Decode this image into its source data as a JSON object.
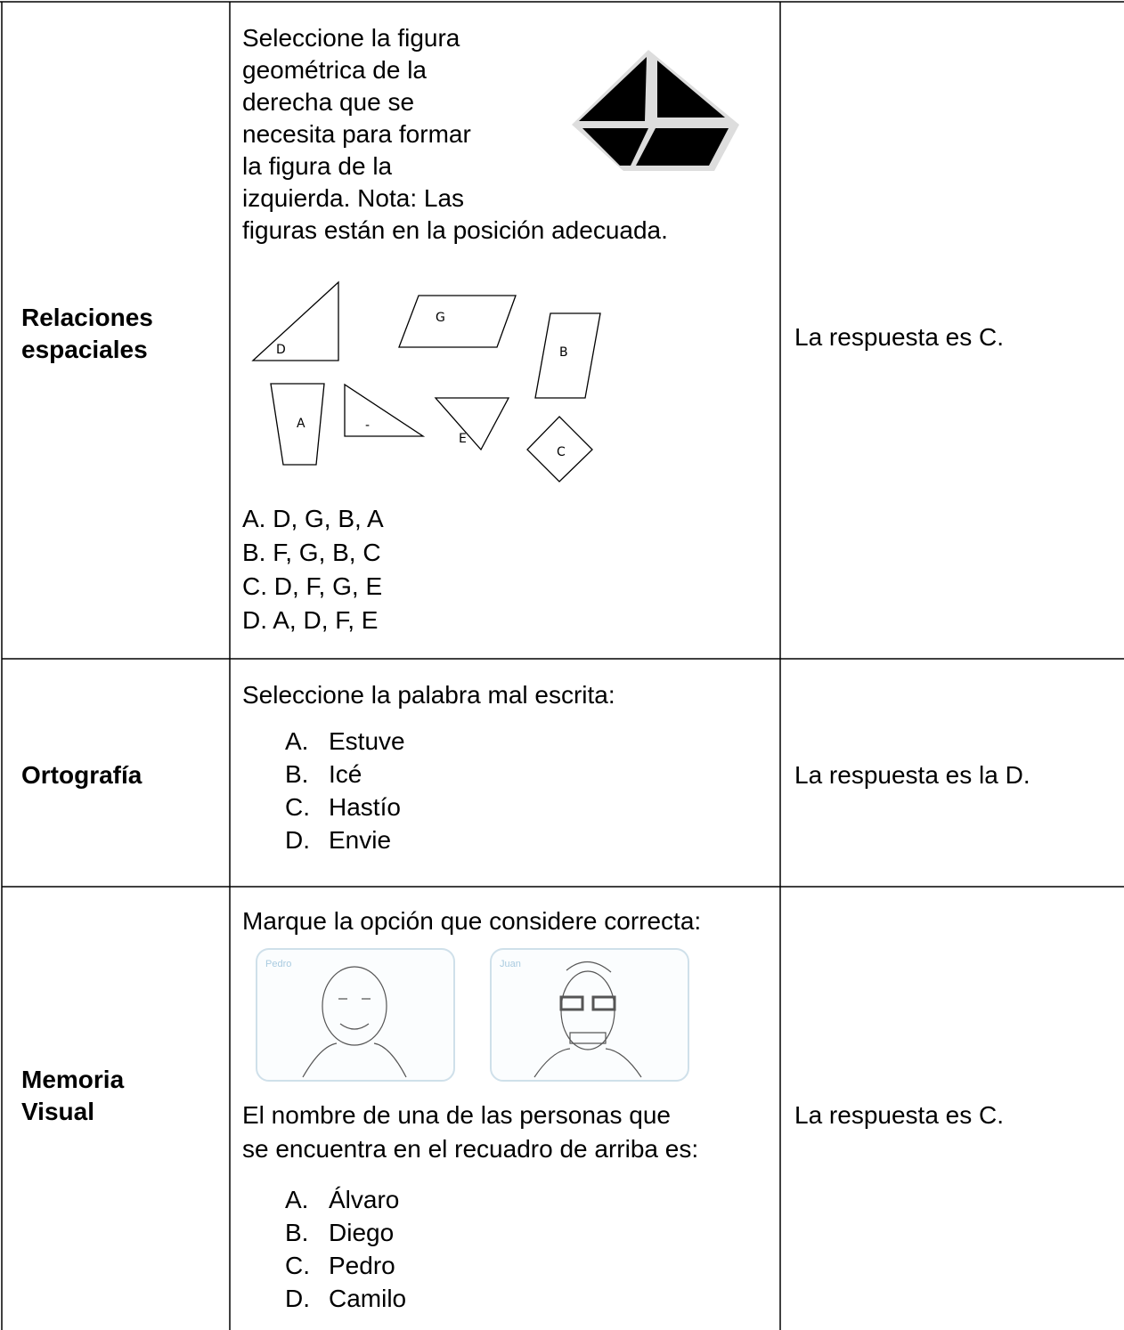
{
  "table": {
    "rows": [
      {
        "category": [
          "Relaciones",
          "espaciales"
        ],
        "question": [
          "Seleccione la figura",
          "geométrica de la",
          "derecha que se",
          "necesita para formar",
          "la figura de la",
          "izquierda. Nota: Las",
          "figuras están en la posición adecuada."
        ],
        "shape_labels": [
          "D",
          "G",
          "B",
          "A",
          "-",
          "E",
          "C"
        ],
        "options": [
          "A. D, G, B, A",
          "B. F, G, B, C",
          "C. D, F, G, E",
          "D. A, D, F, E"
        ],
        "answer": "La respuesta es C."
      },
      {
        "category": [
          "Ortografía"
        ],
        "question": [
          "Seleccione la palabra mal escrita:"
        ],
        "options": [
          {
            "letter": "A.",
            "text": "Estuve"
          },
          {
            "letter": "B.",
            "text": "Icé"
          },
          {
            "letter": "C.",
            "text": "Hastío"
          },
          {
            "letter": "D.",
            "text": "Envie"
          }
        ],
        "answer": "La respuesta es la D."
      },
      {
        "category": [
          "Memoria",
          "Visual"
        ],
        "question": [
          "Marque la opción que considere correcta:"
        ],
        "cards": [
          "Pedro",
          "Juan"
        ],
        "question_2": [
          "El nombre de una de las personas que",
          "se encuentra en el recuadro de arriba es:"
        ],
        "options": [
          {
            "letter": "A.",
            "text": "Álvaro"
          },
          {
            "letter": "B.",
            "text": "Diego"
          },
          {
            "letter": "C.",
            "text": "Pedro"
          },
          {
            "letter": "D.",
            "text": "Camilo"
          }
        ],
        "answer": "La respuesta es C."
      }
    ]
  }
}
